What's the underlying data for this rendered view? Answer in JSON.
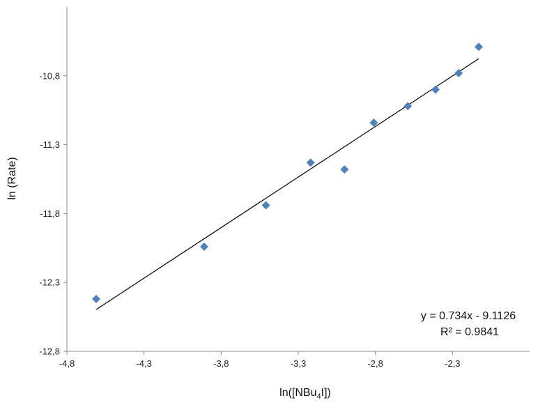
{
  "chart_data": {
    "type": "scatter",
    "xlabel": "ln([NBu4I])",
    "xlabel_main": "ln([NBu",
    "xlabel_sub": "4",
    "xlabel_tail": "I])",
    "ylabel": "ln (Rate)",
    "xlim": [
      -4.8,
      -1.8
    ],
    "ylim": [
      -12.8,
      -10.3
    ],
    "x_ticks": [
      -4.8,
      -4.3,
      -3.8,
      -3.3,
      -2.8,
      -2.3
    ],
    "x_tick_labels": [
      "-4,8",
      "-4,3",
      "-3,8",
      "-3,3",
      "-2,8",
      "-2,3"
    ],
    "y_ticks": [
      -12.8,
      -12.3,
      -11.8,
      -11.3,
      -10.8
    ],
    "y_tick_labels": [
      "-12,8",
      "-12,3",
      "-11,8",
      "-11,3",
      "-10,8"
    ],
    "grid": false,
    "legend": "none",
    "marker_color": "#4f81bd",
    "trendline_color": "#000000",
    "points": [
      {
        "x": -4.61,
        "y": -12.42
      },
      {
        "x": -3.91,
        "y": -12.04
      },
      {
        "x": -3.51,
        "y": -11.74
      },
      {
        "x": -3.22,
        "y": -11.43
      },
      {
        "x": -3.0,
        "y": -11.48
      },
      {
        "x": -2.81,
        "y": -11.14
      },
      {
        "x": -2.59,
        "y": -11.02
      },
      {
        "x": -2.41,
        "y": -10.9
      },
      {
        "x": -2.26,
        "y": -10.78
      },
      {
        "x": -2.13,
        "y": -10.59
      }
    ],
    "trendline": {
      "slope": 0.734,
      "intercept": -9.1126,
      "x_range": [
        -4.61,
        -2.13
      ],
      "equation_label": "y = 0.734x - 9.1126",
      "r2_label": "R² = 0.9841"
    }
  }
}
